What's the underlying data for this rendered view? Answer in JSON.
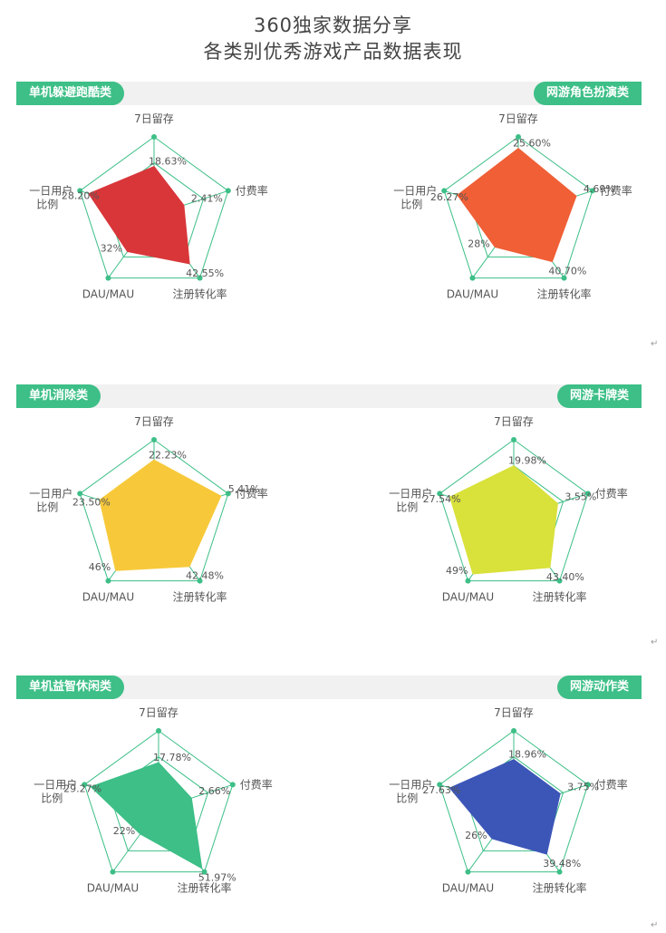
{
  "header": {
    "line1": "360独家数据分享",
    "line2": "各类别优秀游戏产品数据表现"
  },
  "axes": [
    "7日留存",
    "付费率",
    "注册转化率",
    "DAU/MAU",
    "一日用户"
  ],
  "axis_line2": "比例",
  "return_mark": "↵",
  "colors": {
    "accent": "#3dbf87",
    "band": "#f1f1f1",
    "grid": "#3dbf87"
  },
  "chart_data": [
    {
      "type": "radar",
      "category": "单机躲避跑酷类",
      "color": "#d9363a",
      "labels": [
        "18.63%",
        "2.41%",
        "42.55%",
        "32%",
        "28.20%"
      ],
      "values": [
        18.63,
        2.41,
        42.55,
        32,
        28.2
      ]
    },
    {
      "type": "radar",
      "category": "网游角色扮演类",
      "color": "#f05f36",
      "labels": [
        "25.60%",
        "4.69%",
        "40.70%",
        "28%",
        "26.27%"
      ],
      "values": [
        25.6,
        4.69,
        40.7,
        28,
        26.27
      ]
    },
    {
      "type": "radar",
      "category": "单机消除类",
      "color": "#f7c93a",
      "labels": [
        "22.23%",
        "5.41%",
        "42.48%",
        "46%",
        "23.50%"
      ],
      "values": [
        22.23,
        5.41,
        42.48,
        46,
        23.5
      ]
    },
    {
      "type": "radar",
      "category": "网游卡牌类",
      "color": "#d9e13b",
      "labels": [
        "19.98%",
        "3.55%",
        "43.40%",
        "49%",
        "27.54%"
      ],
      "values": [
        19.98,
        3.55,
        43.4,
        49,
        27.54
      ]
    },
    {
      "type": "radar",
      "category": "单机益智休闲类",
      "color": "#3dbf87",
      "labels": [
        "17.78%",
        "2.66%",
        "51.97%",
        "22%",
        "29.27%"
      ],
      "values": [
        17.78,
        2.66,
        51.97,
        22,
        29.27
      ]
    },
    {
      "type": "radar",
      "category": "网游动作类",
      "color": "#3c56b8",
      "labels": [
        "18.96%",
        "3.75%",
        "39.48%",
        "26%",
        "27.63%"
      ],
      "values": [
        18.96,
        3.75,
        39.48,
        26,
        27.63
      ]
    }
  ]
}
